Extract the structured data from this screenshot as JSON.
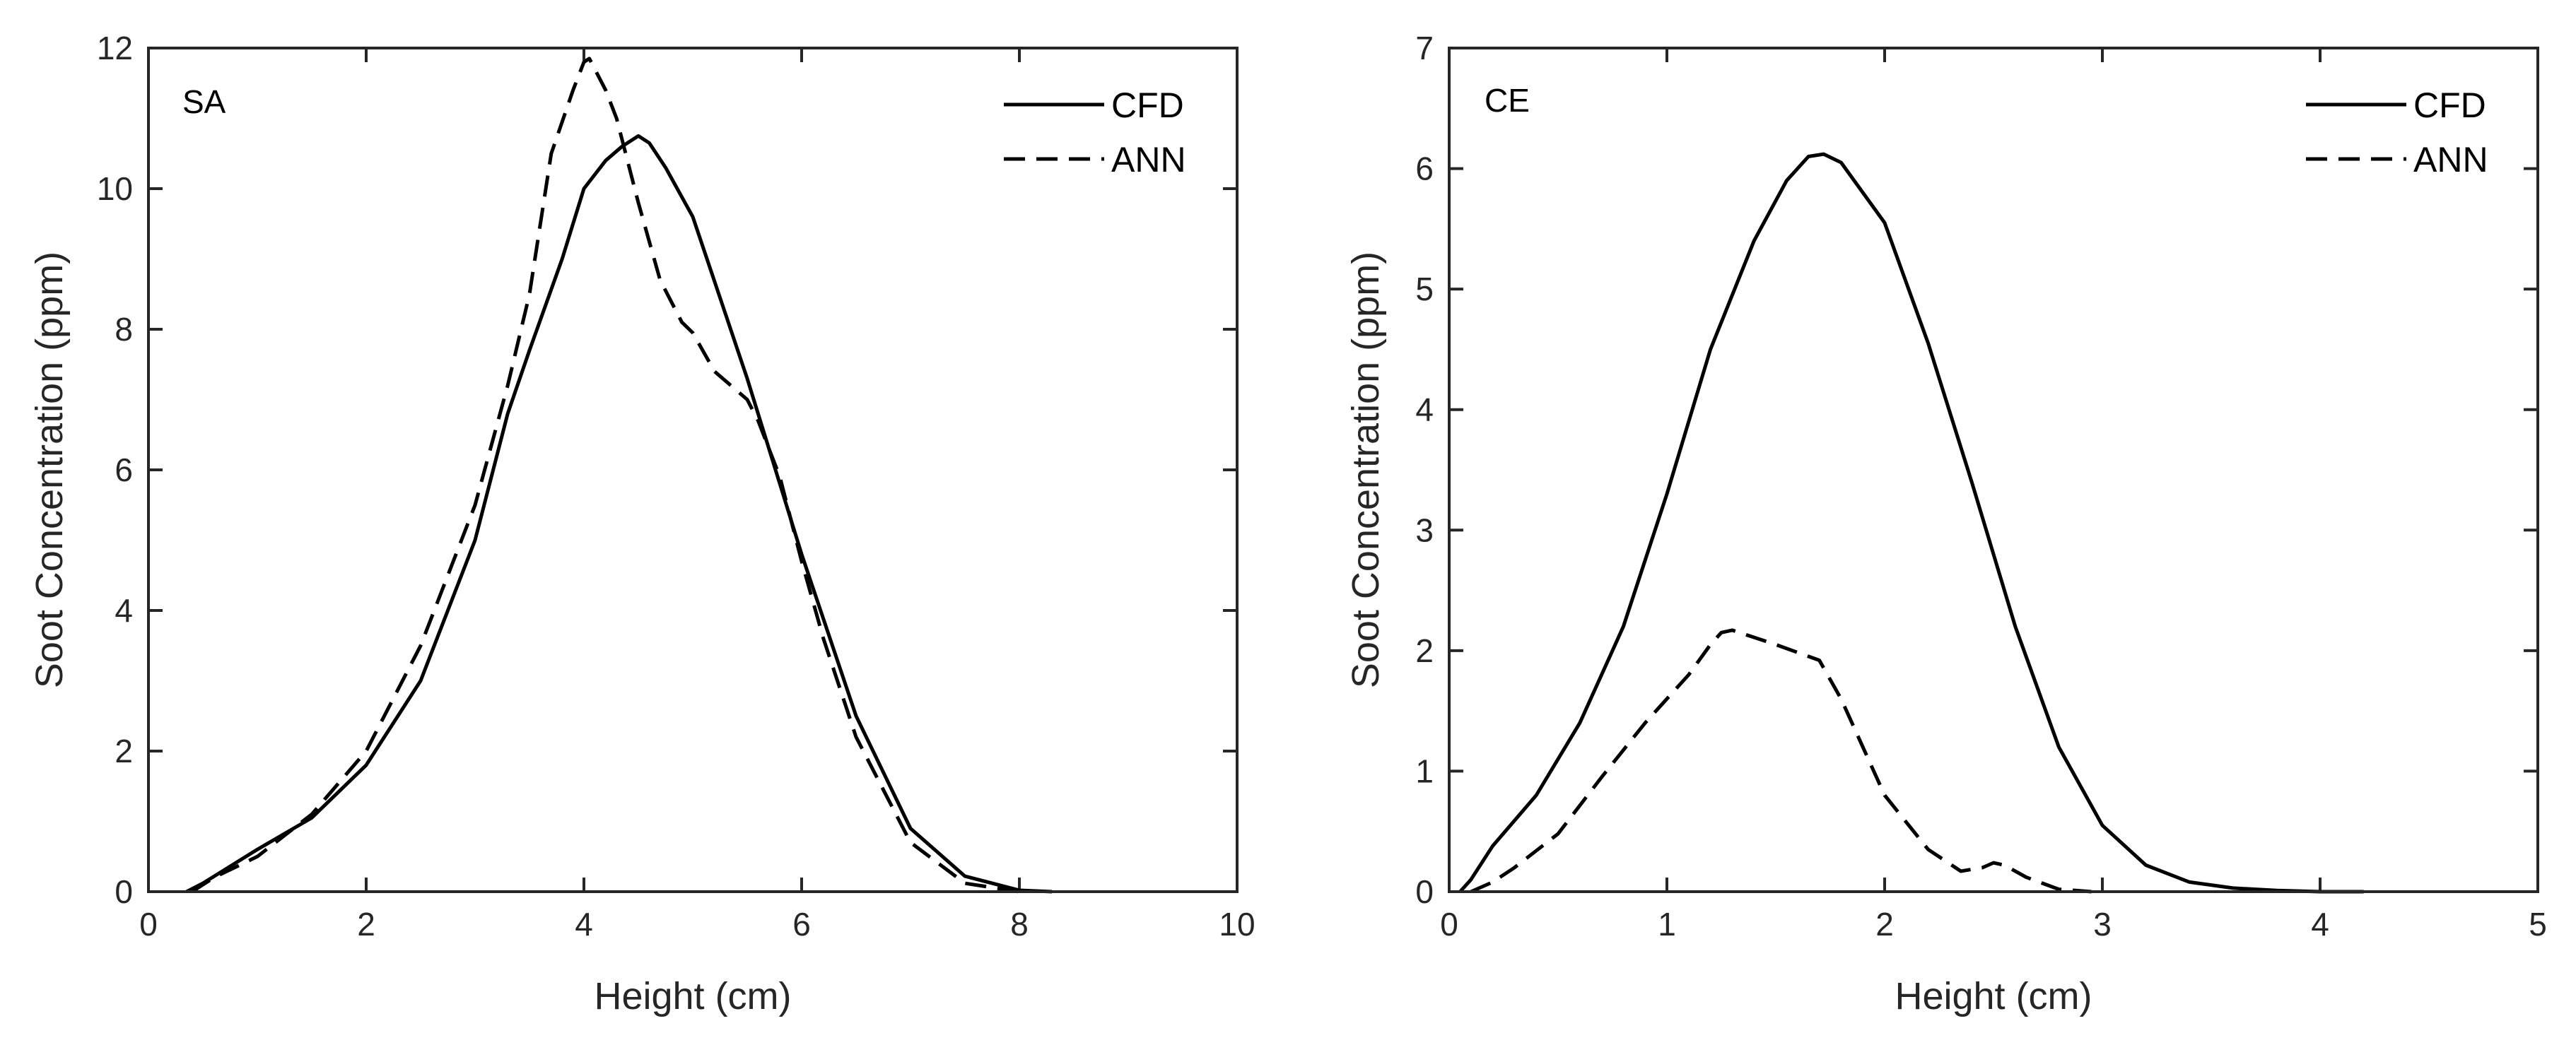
{
  "chart_data": [
    {
      "type": "line",
      "panel_label": "SA",
      "xlabel": "Height (cm)",
      "ylabel": "Soot Concentration (ppm)",
      "xlim": [
        0,
        10
      ],
      "ylim": [
        0,
        12
      ],
      "xticks": [
        0,
        2,
        4,
        6,
        8,
        10
      ],
      "yticks": [
        0,
        2,
        4,
        6,
        8,
        10,
        12
      ],
      "legend_position": "top-right",
      "series": [
        {
          "name": "CFD",
          "style": "solid",
          "x": [
            0.35,
            0.5,
            1.0,
            1.5,
            2.0,
            2.5,
            3.0,
            3.3,
            3.5,
            3.8,
            4.0,
            4.2,
            4.35,
            4.5,
            4.6,
            4.75,
            5.0,
            5.5,
            6.0,
            6.5,
            7.0,
            7.5,
            8.0,
            8.3
          ],
          "values": [
            0.0,
            0.12,
            0.6,
            1.05,
            1.8,
            3.0,
            5.0,
            6.8,
            7.7,
            9.0,
            10.0,
            10.4,
            10.6,
            10.75,
            10.65,
            10.3,
            9.6,
            7.3,
            4.8,
            2.5,
            0.9,
            0.22,
            0.02,
            0.0
          ]
        },
        {
          "name": "ANN",
          "style": "dashed",
          "x": [
            0.4,
            0.6,
            1.0,
            1.5,
            2.0,
            2.5,
            3.0,
            3.3,
            3.5,
            3.7,
            3.9,
            4.0,
            4.05,
            4.2,
            4.3,
            4.5,
            4.7,
            4.9,
            5.0,
            5.2,
            5.5,
            5.6,
            5.8,
            6.0,
            6.2,
            6.5,
            7.0,
            7.5,
            8.0
          ],
          "values": [
            0.0,
            0.2,
            0.5,
            1.1,
            2.0,
            3.5,
            5.5,
            7.2,
            8.5,
            10.5,
            11.4,
            11.8,
            11.85,
            11.4,
            11.0,
            9.8,
            8.7,
            8.1,
            7.95,
            7.4,
            7.0,
            6.7,
            5.9,
            4.7,
            3.6,
            2.2,
            0.7,
            0.12,
            0.0
          ]
        }
      ]
    },
    {
      "type": "line",
      "panel_label": "CE",
      "xlabel": "Height (cm)",
      "ylabel": "Soot Concentration (ppm)",
      "xlim": [
        0,
        5
      ],
      "ylim": [
        0,
        7
      ],
      "xticks": [
        0,
        1,
        2,
        3,
        4,
        5
      ],
      "yticks": [
        0,
        1,
        2,
        3,
        4,
        5,
        6,
        7
      ],
      "legend_position": "top-right",
      "series": [
        {
          "name": "CFD",
          "style": "solid",
          "x": [
            0.05,
            0.1,
            0.2,
            0.4,
            0.6,
            0.8,
            1.0,
            1.2,
            1.4,
            1.55,
            1.65,
            1.72,
            1.8,
            2.0,
            2.2,
            2.4,
            2.6,
            2.8,
            3.0,
            3.2,
            3.4,
            3.6,
            3.8,
            4.0,
            4.2
          ],
          "values": [
            0.0,
            0.1,
            0.38,
            0.8,
            1.4,
            2.2,
            3.3,
            4.5,
            5.4,
            5.9,
            6.1,
            6.12,
            6.05,
            5.55,
            4.55,
            3.4,
            2.2,
            1.2,
            0.55,
            0.22,
            0.08,
            0.03,
            0.01,
            0.0,
            0.0
          ]
        },
        {
          "name": "ANN",
          "style": "dashed",
          "x": [
            0.1,
            0.2,
            0.3,
            0.5,
            0.7,
            0.9,
            1.0,
            1.1,
            1.2,
            1.25,
            1.3,
            1.5,
            1.7,
            1.8,
            1.9,
            2.0,
            2.2,
            2.35,
            2.45,
            2.5,
            2.55,
            2.65,
            2.8,
            2.95
          ],
          "values": [
            0.0,
            0.08,
            0.2,
            0.48,
            0.95,
            1.4,
            1.6,
            1.8,
            2.05,
            2.15,
            2.17,
            2.05,
            1.92,
            1.6,
            1.2,
            0.8,
            0.35,
            0.17,
            0.2,
            0.24,
            0.22,
            0.12,
            0.02,
            0.0
          ]
        }
      ]
    }
  ]
}
